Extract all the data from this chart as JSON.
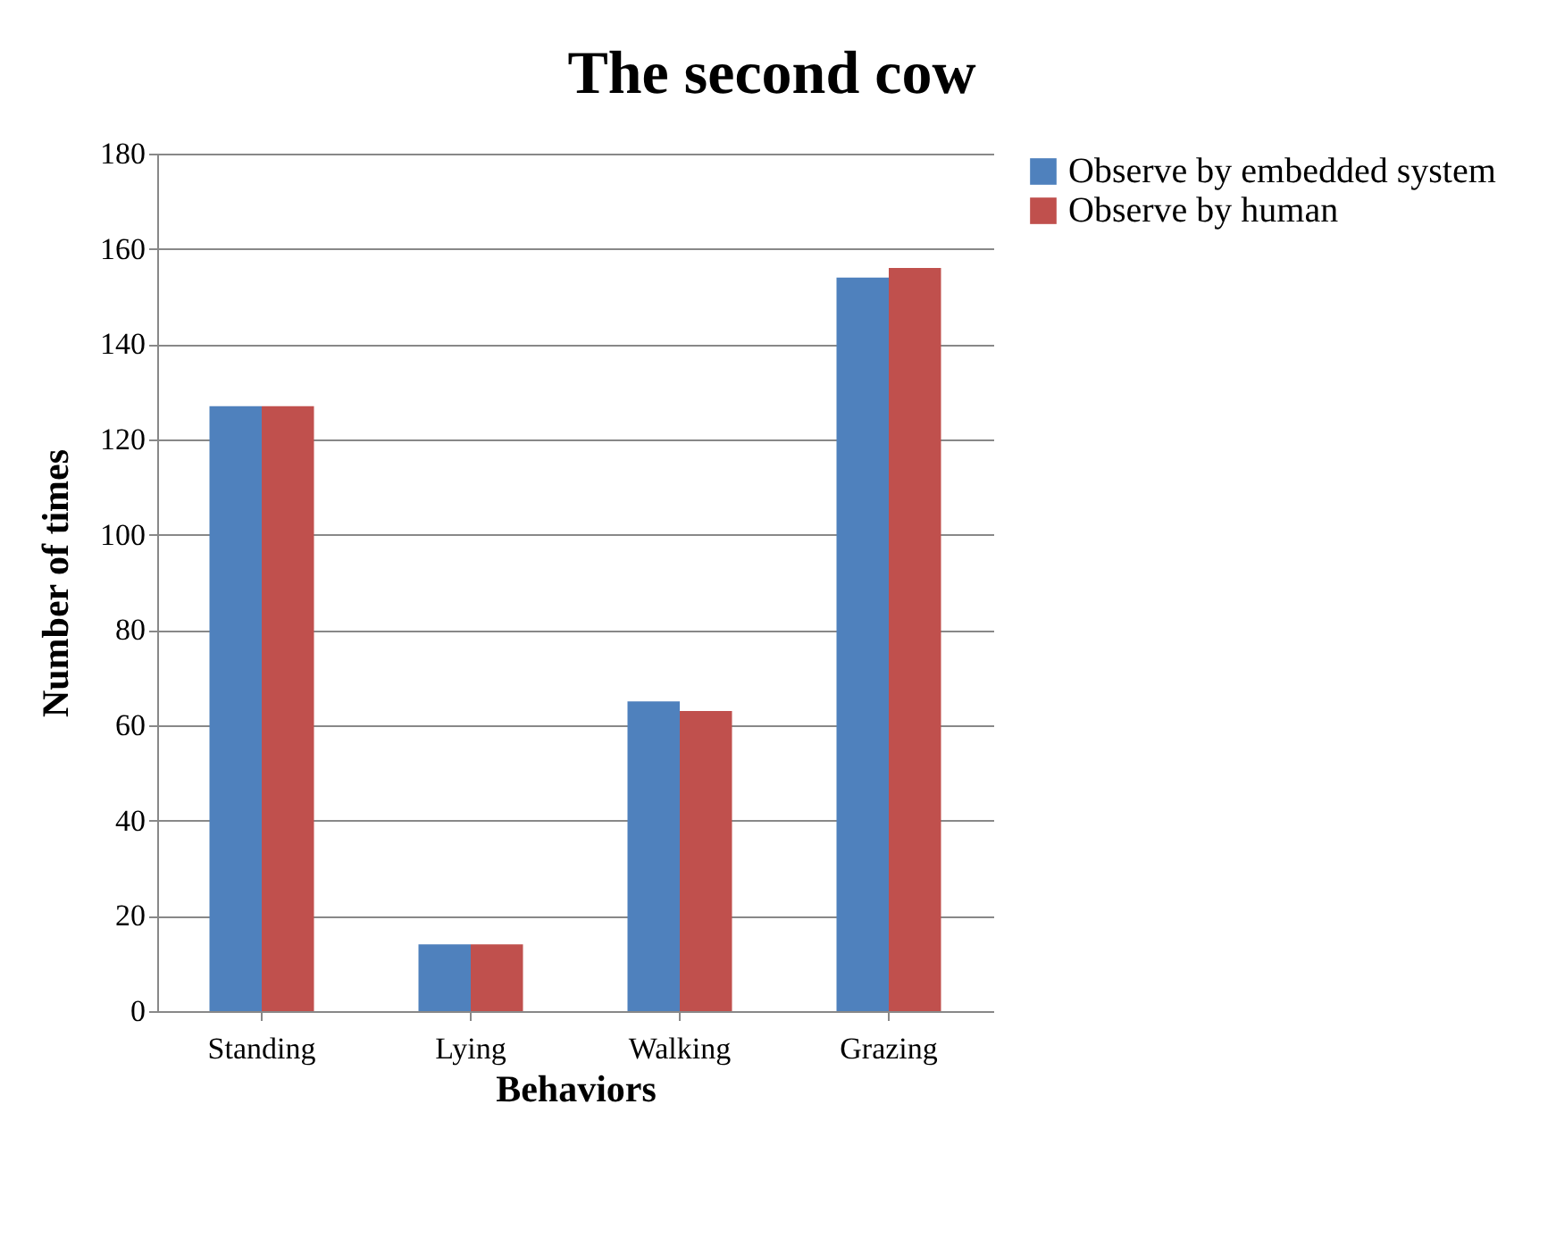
{
  "chart_data": {
    "type": "bar",
    "title": "The second cow",
    "xlabel": "Behaviors",
    "ylabel": "Number of times",
    "categories": [
      "Standing",
      "Lying",
      "Walking",
      "Grazing"
    ],
    "series": [
      {
        "name": "Observe by embedded system",
        "color": "#4f81bd",
        "values": [
          127,
          14,
          65,
          154
        ]
      },
      {
        "name": "Observe by human",
        "color": "#c0504d",
        "values": [
          127,
          14,
          63,
          156
        ]
      }
    ],
    "ylim": [
      0,
      180
    ],
    "yticks": [
      0,
      20,
      40,
      60,
      80,
      100,
      120,
      140,
      160,
      180
    ],
    "grid": "y",
    "legend": "right"
  }
}
